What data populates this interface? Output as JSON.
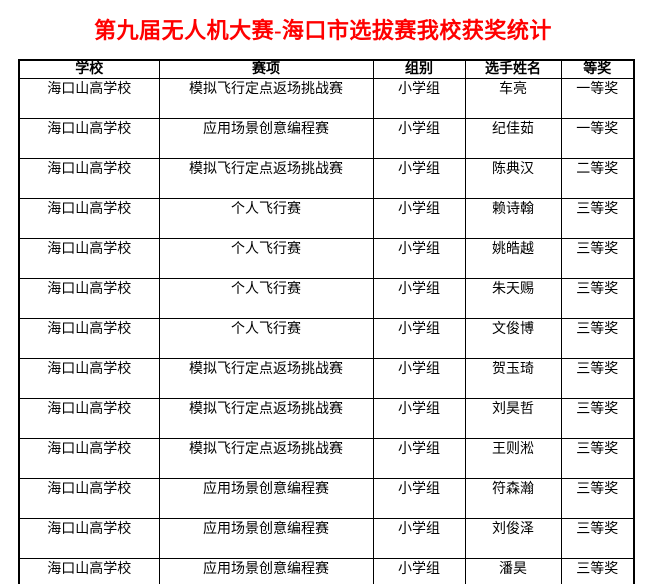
{
  "document": {
    "title": "第九届无人机大赛-海口市选拔赛我校获奖统计",
    "title_color": "#ff0000",
    "background_color": "#ffffff",
    "border_color": "#000000"
  },
  "table": {
    "headers": [
      "学校",
      "赛项",
      "组别",
      "选手姓名",
      "等奖"
    ],
    "rows": [
      [
        "海口山高学校",
        "模拟飞行定点返场挑战赛",
        "小学组",
        "车亮",
        "一等奖"
      ],
      [
        "海口山高学校",
        "应用场景创意编程赛",
        "小学组",
        "纪佳茹",
        "一等奖"
      ],
      [
        "海口山高学校",
        "模拟飞行定点返场挑战赛",
        "小学组",
        "陈典汉",
        "二等奖"
      ],
      [
        "海口山高学校",
        "个人飞行赛",
        "小学组",
        "赖诗翰",
        "三等奖"
      ],
      [
        "海口山高学校",
        "个人飞行赛",
        "小学组",
        "姚皓越",
        "三等奖"
      ],
      [
        "海口山高学校",
        "个人飞行赛",
        "小学组",
        "朱天赐",
        "三等奖"
      ],
      [
        "海口山高学校",
        "个人飞行赛",
        "小学组",
        "文俊博",
        "三等奖"
      ],
      [
        "海口山高学校",
        "模拟飞行定点返场挑战赛",
        "小学组",
        "贺玉琦",
        "三等奖"
      ],
      [
        "海口山高学校",
        "模拟飞行定点返场挑战赛",
        "小学组",
        "刘昊哲",
        "三等奖"
      ],
      [
        "海口山高学校",
        "模拟飞行定点返场挑战赛",
        "小学组",
        "王则淞",
        "三等奖"
      ],
      [
        "海口山高学校",
        "应用场景创意编程赛",
        "小学组",
        "符森瀚",
        "三等奖"
      ],
      [
        "海口山高学校",
        "应用场景创意编程赛",
        "小学组",
        "刘俊泽",
        "三等奖"
      ],
      [
        "海口山高学校",
        "应用场景创意编程赛",
        "小学组",
        "潘昊",
        "三等奖"
      ]
    ]
  }
}
